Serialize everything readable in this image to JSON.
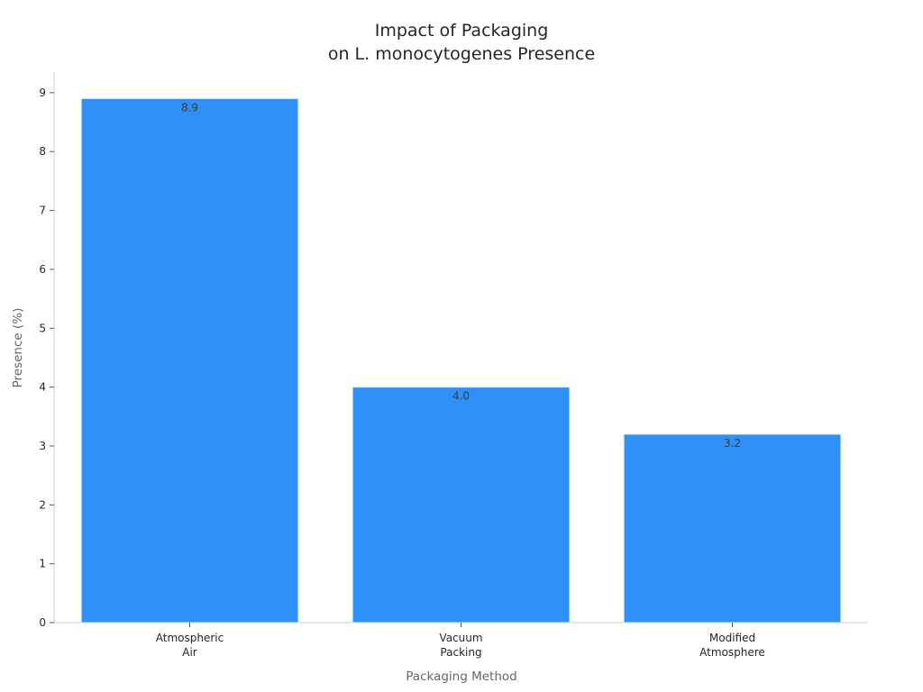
{
  "chart_data": {
    "type": "bar",
    "title_lines": [
      "Impact of Packaging",
      "on L. monocytogenes Presence"
    ],
    "xlabel": "Packaging Method",
    "ylabel": "Presence (%)",
    "categories": [
      [
        "Atmospheric",
        "Air"
      ],
      [
        "Vacuum",
        "Packing"
      ],
      [
        "Modified",
        "Atmosphere"
      ]
    ],
    "values": [
      8.9,
      4.0,
      3.2
    ],
    "value_labels": [
      "8.9",
      "4.0",
      "3.2"
    ],
    "ylim": [
      0,
      9.35
    ],
    "yticks": [
      0,
      1,
      2,
      3,
      4,
      5,
      6,
      7,
      8,
      9
    ],
    "grid": false,
    "legend": "none",
    "colors": {
      "bar": "#2f91f7",
      "bar_edge": "#e3eefb"
    }
  }
}
